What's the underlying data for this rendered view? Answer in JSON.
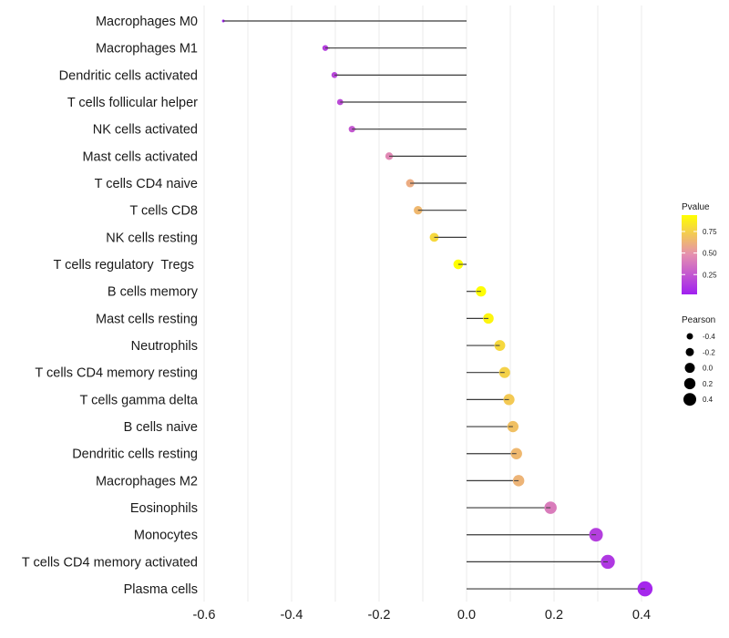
{
  "chart_data": {
    "type": "lollipop",
    "title": "",
    "xlabel": "",
    "ylabel": "",
    "xlim": [
      -0.6,
      0.45
    ],
    "x_ticks": [
      -0.6,
      -0.4,
      -0.2,
      0.0,
      0.2,
      0.4
    ],
    "x_tick_labels": [
      "-0.6",
      "-0.4",
      "-0.2",
      "0.0",
      "0.2",
      "0.4"
    ],
    "grid": true,
    "baseline": 0.0,
    "categories": [
      "Macrophages M0",
      "Macrophages M1",
      "Dendritic cells activated",
      "T cells follicular helper",
      "NK cells activated",
      "Mast cells activated",
      "T cells CD4 naive",
      "T cells CD8",
      "NK cells resting",
      "T cells regulatory  Tregs ",
      "B cells memory",
      "Mast cells resting",
      "Neutrophils",
      "T cells CD4 memory resting",
      "T cells gamma delta",
      "B cells naive",
      "Dendritic cells resting",
      "Macrophages M2",
      "Eosinophils",
      "Monocytes",
      "T cells CD4 memory activated",
      "Plasma cells"
    ],
    "pearson": [
      -0.556,
      -0.323,
      -0.302,
      -0.289,
      -0.262,
      -0.177,
      -0.129,
      -0.111,
      -0.074,
      -0.019,
      0.033,
      0.05,
      0.076,
      0.087,
      0.097,
      0.106,
      0.114,
      0.119,
      0.192,
      0.296,
      0.323,
      0.408
    ],
    "pvalue": [
      0.02,
      0.15,
      0.18,
      0.2,
      0.25,
      0.45,
      0.6,
      0.65,
      0.78,
      0.95,
      0.93,
      0.9,
      0.78,
      0.75,
      0.72,
      0.68,
      0.65,
      0.63,
      0.4,
      0.15,
      0.12,
      0.05
    ],
    "legend": {
      "color": {
        "title": "Pvalue",
        "ticks": [
          0.25,
          0.5,
          0.75
        ],
        "tick_labels": [
          "0.25",
          "0.50",
          "0.75"
        ],
        "range": [
          0.02,
          0.94
        ],
        "low_color": "#A020F0",
        "mid_color": "#E58FB0",
        "high_color": "#FFFF00",
        "placement": "right"
      },
      "size": {
        "title": "Pearson",
        "values": [
          -0.4,
          -0.2,
          0.0,
          0.2,
          0.4
        ],
        "labels": [
          "-0.4",
          "-0.2",
          "0.0",
          "0.2",
          "0.4"
        ],
        "placement": "right"
      }
    }
  }
}
